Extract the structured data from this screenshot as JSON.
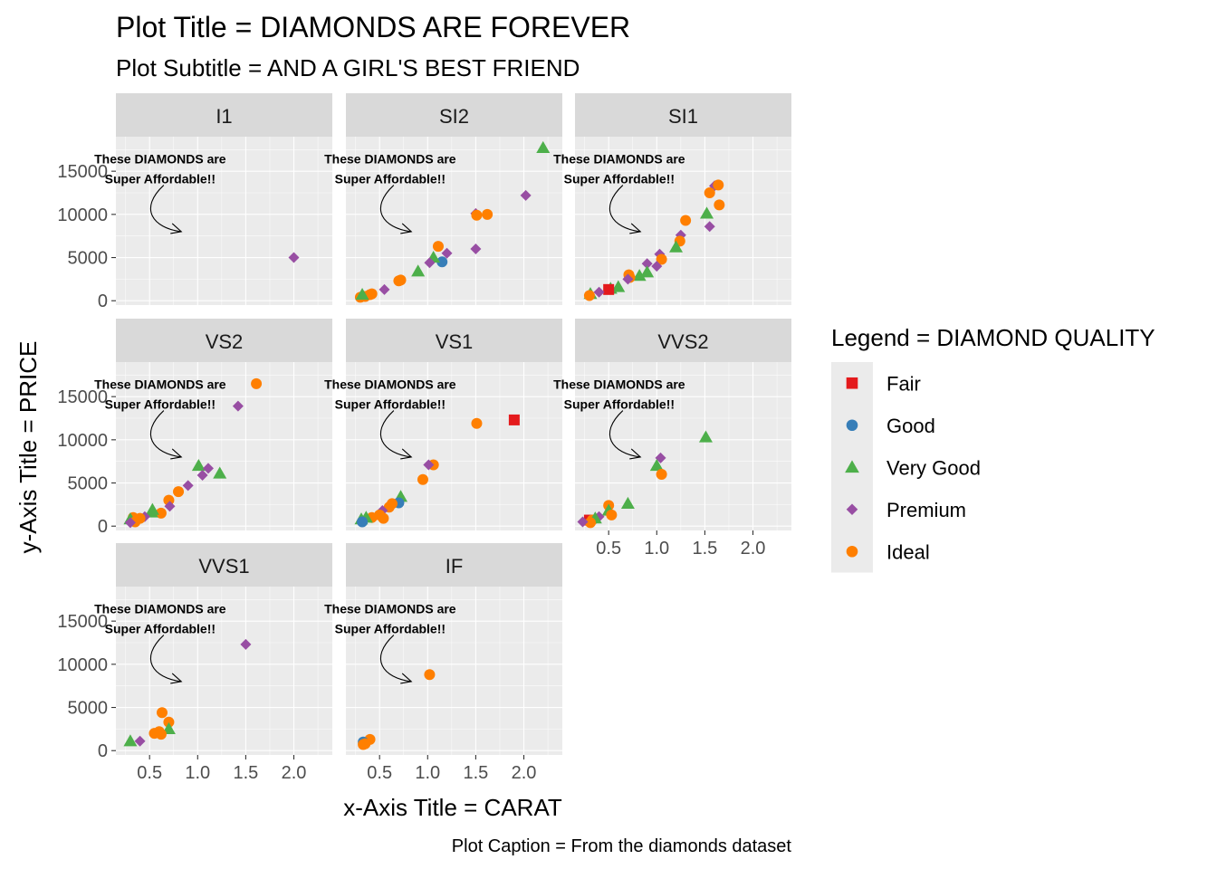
{
  "chart_data": {
    "type": "scatter",
    "title": "Plot Title = DIAMONDS ARE FOREVER",
    "subtitle": "Plot Subtitle = AND A GIRL'S BEST FRIEND",
    "xlabel": "x-Axis Title = CARAT",
    "ylabel": "y-Axis Title = PRICE",
    "caption": "Plot Caption = From the diamonds dataset",
    "legend_title": "Legend = DIAMOND QUALITY",
    "legend_position": "right",
    "grid": true,
    "xlim": [
      0.15,
      2.4
    ],
    "ylim": [
      -500,
      19000
    ],
    "x_ticks": [
      0.5,
      1.0,
      1.5,
      2.0
    ],
    "x_tick_labels": [
      "0.5",
      "1.0",
      "1.5",
      "2.0"
    ],
    "y_ticks": [
      0,
      5000,
      10000,
      15000
    ],
    "y_tick_labels": [
      "0",
      "5000",
      "10000",
      "15000"
    ],
    "annotation": {
      "line1": "These DIAMONDS are",
      "line2": "Super Affordable!!",
      "text_x": 0.61,
      "text_y": 15900,
      "arrow_tip_x": 0.83,
      "arrow_tip_y": 8000
    },
    "series": [
      {
        "name": "Fair",
        "color": "#E41A1C",
        "shape": "square"
      },
      {
        "name": "Good",
        "color": "#377EB8",
        "shape": "circle"
      },
      {
        "name": "Very Good",
        "color": "#4DAF4A",
        "shape": "triangle"
      },
      {
        "name": "Premium",
        "color": "#984EA3",
        "shape": "diamond"
      },
      {
        "name": "Ideal",
        "color": "#FF7F00",
        "shape": "circle"
      }
    ],
    "facets": [
      {
        "label": "I1",
        "points": [
          {
            "x": 2.0,
            "y": 5000,
            "s": "Premium"
          }
        ]
      },
      {
        "label": "SI2",
        "points": [
          {
            "x": 2.2,
            "y": 17700,
            "s": "Very Good"
          },
          {
            "x": 2.02,
            "y": 12200,
            "s": "Premium"
          },
          {
            "x": 1.5,
            "y": 10100,
            "s": "Premium"
          },
          {
            "x": 1.51,
            "y": 9900,
            "s": "Ideal"
          },
          {
            "x": 1.62,
            "y": 10000,
            "s": "Ideal"
          },
          {
            "x": 1.5,
            "y": 6000,
            "s": "Premium"
          },
          {
            "x": 1.11,
            "y": 6300,
            "s": "Ideal"
          },
          {
            "x": 1.2,
            "y": 5500,
            "s": "Premium"
          },
          {
            "x": 1.15,
            "y": 4500,
            "s": "Good"
          },
          {
            "x": 1.06,
            "y": 5000,
            "s": "Very Good"
          },
          {
            "x": 1.02,
            "y": 4400,
            "s": "Premium"
          },
          {
            "x": 0.9,
            "y": 3400,
            "s": "Very Good"
          },
          {
            "x": 0.72,
            "y": 2400,
            "s": "Ideal"
          },
          {
            "x": 0.7,
            "y": 2300,
            "s": "Ideal"
          },
          {
            "x": 0.55,
            "y": 1300,
            "s": "Premium"
          },
          {
            "x": 0.42,
            "y": 800,
            "s": "Ideal"
          },
          {
            "x": 0.4,
            "y": 700,
            "s": "Ideal"
          },
          {
            "x": 0.35,
            "y": 500,
            "s": "Ideal"
          },
          {
            "x": 0.3,
            "y": 400,
            "s": "Ideal"
          },
          {
            "x": 0.32,
            "y": 700,
            "s": "Very Good"
          }
        ]
      },
      {
        "label": "SI1",
        "points": [
          {
            "x": 1.6,
            "y": 13300,
            "s": "Premium"
          },
          {
            "x": 1.64,
            "y": 13400,
            "s": "Ideal"
          },
          {
            "x": 1.55,
            "y": 12500,
            "s": "Ideal"
          },
          {
            "x": 1.65,
            "y": 11100,
            "s": "Ideal"
          },
          {
            "x": 1.52,
            "y": 10100,
            "s": "Very Good"
          },
          {
            "x": 1.55,
            "y": 8600,
            "s": "Premium"
          },
          {
            "x": 1.3,
            "y": 9300,
            "s": "Ideal"
          },
          {
            "x": 1.25,
            "y": 7600,
            "s": "Premium"
          },
          {
            "x": 1.24,
            "y": 6900,
            "s": "Ideal"
          },
          {
            "x": 1.2,
            "y": 6200,
            "s": "Very Good"
          },
          {
            "x": 1.03,
            "y": 5400,
            "s": "Premium"
          },
          {
            "x": 1.05,
            "y": 4800,
            "s": "Ideal"
          },
          {
            "x": 1.0,
            "y": 4000,
            "s": "Premium"
          },
          {
            "x": 0.9,
            "y": 4300,
            "s": "Premium"
          },
          {
            "x": 0.9,
            "y": 3300,
            "s": "Very Good"
          },
          {
            "x": 0.82,
            "y": 2900,
            "s": "Very Good"
          },
          {
            "x": 0.72,
            "y": 2700,
            "s": "Ideal"
          },
          {
            "x": 0.71,
            "y": 3000,
            "s": "Ideal"
          },
          {
            "x": 0.7,
            "y": 2500,
            "s": "Premium"
          },
          {
            "x": 0.6,
            "y": 1600,
            "s": "Very Good"
          },
          {
            "x": 0.52,
            "y": 1400,
            "s": "Very Good"
          },
          {
            "x": 0.5,
            "y": 1300,
            "s": "Fair"
          },
          {
            "x": 0.4,
            "y": 1000,
            "s": "Premium"
          },
          {
            "x": 0.31,
            "y": 800,
            "s": "Very Good"
          },
          {
            "x": 0.3,
            "y": 600,
            "s": "Ideal"
          }
        ]
      },
      {
        "label": "VS2",
        "points": [
          {
            "x": 1.61,
            "y": 16500,
            "s": "Ideal"
          },
          {
            "x": 1.42,
            "y": 13900,
            "s": "Premium"
          },
          {
            "x": 1.01,
            "y": 7000,
            "s": "Very Good"
          },
          {
            "x": 1.11,
            "y": 6700,
            "s": "Premium"
          },
          {
            "x": 1.23,
            "y": 6100,
            "s": "Very Good"
          },
          {
            "x": 1.05,
            "y": 5900,
            "s": "Premium"
          },
          {
            "x": 0.9,
            "y": 4700,
            "s": "Premium"
          },
          {
            "x": 0.8,
            "y": 4000,
            "s": "Ideal"
          },
          {
            "x": 0.7,
            "y": 3000,
            "s": "Ideal"
          },
          {
            "x": 0.71,
            "y": 2300,
            "s": "Premium"
          },
          {
            "x": 0.62,
            "y": 1500,
            "s": "Ideal"
          },
          {
            "x": 0.53,
            "y": 1900,
            "s": "Very Good"
          },
          {
            "x": 0.52,
            "y": 1600,
            "s": "Very Good"
          },
          {
            "x": 0.45,
            "y": 1100,
            "s": "Premium"
          },
          {
            "x": 0.4,
            "y": 900,
            "s": "Ideal"
          },
          {
            "x": 0.33,
            "y": 1000,
            "s": "Ideal"
          },
          {
            "x": 0.3,
            "y": 800,
            "s": "Very Good"
          },
          {
            "x": 0.35,
            "y": 500,
            "s": "Ideal"
          },
          {
            "x": 0.3,
            "y": 400,
            "s": "Premium"
          }
        ]
      },
      {
        "label": "VS1",
        "points": [
          {
            "x": 1.9,
            "y": 12300,
            "s": "Fair"
          },
          {
            "x": 1.51,
            "y": 11900,
            "s": "Ideal"
          },
          {
            "x": 1.06,
            "y": 7100,
            "s": "Ideal"
          },
          {
            "x": 1.01,
            "y": 7100,
            "s": "Premium"
          },
          {
            "x": 0.95,
            "y": 5400,
            "s": "Ideal"
          },
          {
            "x": 0.72,
            "y": 3400,
            "s": "Very Good"
          },
          {
            "x": 0.7,
            "y": 2700,
            "s": "Good"
          },
          {
            "x": 0.63,
            "y": 2600,
            "s": "Ideal"
          },
          {
            "x": 0.6,
            "y": 2200,
            "s": "Ideal"
          },
          {
            "x": 0.53,
            "y": 1800,
            "s": "Premium"
          },
          {
            "x": 0.5,
            "y": 1300,
            "s": "Ideal"
          },
          {
            "x": 0.54,
            "y": 900,
            "s": "Ideal"
          },
          {
            "x": 0.42,
            "y": 1000,
            "s": "Ideal"
          },
          {
            "x": 0.36,
            "y": 1000,
            "s": "Very Good"
          },
          {
            "x": 0.31,
            "y": 800,
            "s": "Very Good"
          },
          {
            "x": 0.32,
            "y": 500,
            "s": "Good"
          }
        ]
      },
      {
        "label": "VVS2",
        "points": [
          {
            "x": 1.51,
            "y": 10300,
            "s": "Very Good"
          },
          {
            "x": 1.04,
            "y": 7900,
            "s": "Premium"
          },
          {
            "x": 1.0,
            "y": 7000,
            "s": "Very Good"
          },
          {
            "x": 1.05,
            "y": 6000,
            "s": "Ideal"
          },
          {
            "x": 0.7,
            "y": 2600,
            "s": "Very Good"
          },
          {
            "x": 0.5,
            "y": 2400,
            "s": "Ideal"
          },
          {
            "x": 0.5,
            "y": 1800,
            "s": "Very Good"
          },
          {
            "x": 0.53,
            "y": 1300,
            "s": "Ideal"
          },
          {
            "x": 0.4,
            "y": 1100,
            "s": "Premium"
          },
          {
            "x": 0.3,
            "y": 700,
            "s": "Fair"
          },
          {
            "x": 0.33,
            "y": 700,
            "s": "Ideal"
          },
          {
            "x": 0.36,
            "y": 900,
            "s": "Very Good"
          },
          {
            "x": 0.31,
            "y": 400,
            "s": "Ideal"
          },
          {
            "x": 0.23,
            "y": 500,
            "s": "Premium"
          }
        ]
      },
      {
        "label": "VVS1",
        "points": [
          {
            "x": 1.5,
            "y": 12300,
            "s": "Premium"
          },
          {
            "x": 0.63,
            "y": 4400,
            "s": "Ideal"
          },
          {
            "x": 0.7,
            "y": 3300,
            "s": "Ideal"
          },
          {
            "x": 0.7,
            "y": 2500,
            "s": "Very Good"
          },
          {
            "x": 0.6,
            "y": 2200,
            "s": "Ideal"
          },
          {
            "x": 0.55,
            "y": 2000,
            "s": "Ideal"
          },
          {
            "x": 0.62,
            "y": 1900,
            "s": "Ideal"
          },
          {
            "x": 0.4,
            "y": 1100,
            "s": "Premium"
          },
          {
            "x": 0.3,
            "y": 1100,
            "s": "Very Good"
          }
        ]
      },
      {
        "label": "IF",
        "points": [
          {
            "x": 1.02,
            "y": 8800,
            "s": "Ideal"
          },
          {
            "x": 0.4,
            "y": 1300,
            "s": "Ideal"
          },
          {
            "x": 0.33,
            "y": 1000,
            "s": "Good"
          },
          {
            "x": 0.35,
            "y": 800,
            "s": "Ideal"
          },
          {
            "x": 0.33,
            "y": 700,
            "s": "Ideal"
          }
        ]
      }
    ]
  }
}
